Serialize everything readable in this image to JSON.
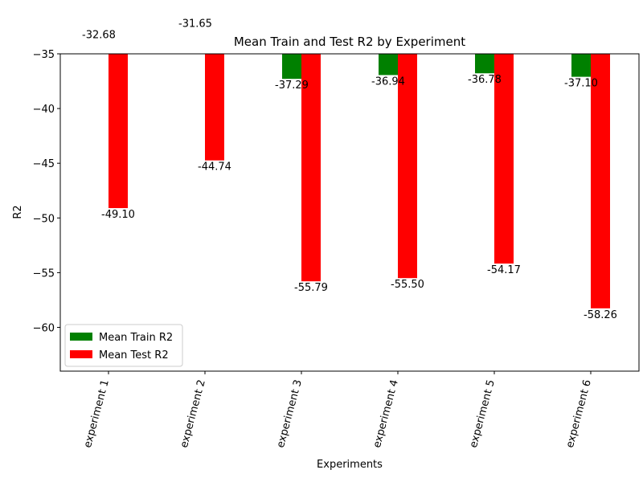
{
  "chart_data": {
    "type": "bar",
    "title": "Mean Train and Test R2 by Experiment",
    "x_label": "Experiments",
    "y_label": "R2",
    "categories": [
      "experiment 1",
      "experiment 2",
      "experiment 3",
      "experiment 4",
      "experiment 5",
      "experiment 6"
    ],
    "series": [
      {
        "name": "Mean Train R2",
        "color": "#008000",
        "values": [
          -32.68,
          -31.65,
          -37.29,
          -36.94,
          -36.78,
          -37.1
        ],
        "value_labels": [
          "-32.68",
          "-31.65",
          "-37.29",
          "-36.94",
          "-36.78",
          "-37.10"
        ]
      },
      {
        "name": "Mean Test R2",
        "color": "#ff0000",
        "values": [
          -49.1,
          -44.74,
          -55.79,
          -55.5,
          -54.17,
          -58.26
        ],
        "value_labels": [
          "-49.10",
          "-44.74",
          "-55.79",
          "-55.50",
          "-54.17",
          "-58.26"
        ]
      }
    ],
    "ylim": [
      -64,
      -35
    ],
    "yticks": [
      {
        "value": -60,
        "label": "−60"
      },
      {
        "value": -55,
        "label": "−55"
      },
      {
        "value": -50,
        "label": "−50"
      },
      {
        "value": -45,
        "label": "−45"
      },
      {
        "value": -40,
        "label": "−40"
      },
      {
        "value": -35,
        "label": "−35"
      }
    ],
    "legend": "lower left"
  }
}
